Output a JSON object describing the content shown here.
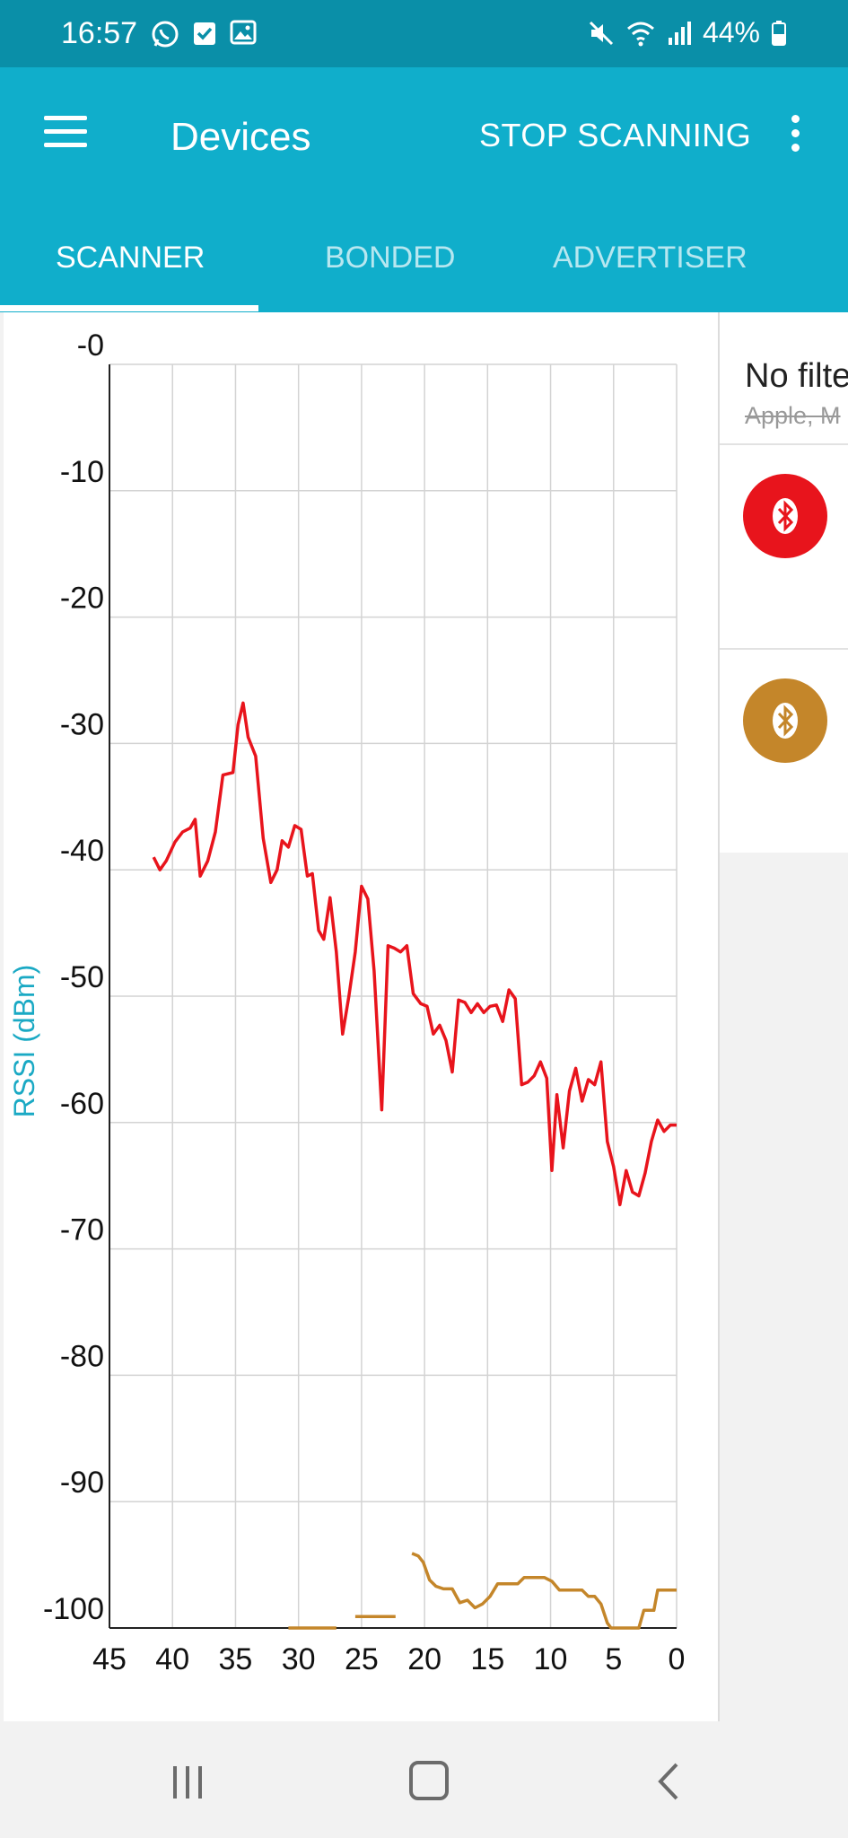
{
  "status_bar": {
    "time": "16:57",
    "battery": "44%"
  },
  "app_bar": {
    "title": "Devices",
    "stop_scanning": "STOP SCANNING"
  },
  "tabs": [
    {
      "label": "SCANNER",
      "active": true
    },
    {
      "label": "BONDED",
      "active": false
    },
    {
      "label": "ADVERTISER",
      "active": false
    }
  ],
  "filter": {
    "title": "No filte",
    "subtitle": "Apple, M"
  },
  "devices": [
    {
      "icon": "bluetooth-icon",
      "color": "#e8141c"
    },
    {
      "icon": "bluetooth-icon",
      "color": "#c4862a"
    }
  ],
  "colors": {
    "accent": "#10aecb",
    "status_bar": "#0a8fa8",
    "series_1": "#e8141c",
    "series_2": "#c4862a"
  },
  "chart_data": {
    "type": "line",
    "ylabel": "RSSI (dBm)",
    "xlabel": "",
    "xlim": [
      45,
      0
    ],
    "ylim": [
      -100,
      0
    ],
    "x_ticks": [
      "45",
      "40",
      "35",
      "30",
      "25",
      "20",
      "15",
      "10",
      "5",
      "0"
    ],
    "y_ticks": [
      "-0",
      "-10",
      "-20",
      "-30",
      "-40",
      "-50",
      "-60",
      "-70",
      "-80",
      "-90",
      "-100"
    ],
    "grid": true,
    "series": [
      {
        "color": "#e8141c",
        "points": [
          [
            41.5,
            -39
          ],
          [
            41,
            -40
          ],
          [
            40.5,
            -39.3
          ],
          [
            39.8,
            -37.8
          ],
          [
            39.2,
            -37
          ],
          [
            38.6,
            -36.7
          ],
          [
            38.2,
            -36
          ],
          [
            37.8,
            -40.5
          ],
          [
            37.2,
            -39.3
          ],
          [
            36.6,
            -37
          ],
          [
            36,
            -32.5
          ],
          [
            35.2,
            -32.3
          ],
          [
            34.8,
            -28.5
          ],
          [
            34.4,
            -26.8
          ],
          [
            34,
            -29.5
          ],
          [
            33.4,
            -31
          ],
          [
            32.8,
            -37.5
          ],
          [
            32.2,
            -41
          ],
          [
            31.7,
            -40
          ],
          [
            31.3,
            -37.7
          ],
          [
            30.8,
            -38.2
          ],
          [
            30.3,
            -36.5
          ],
          [
            29.8,
            -36.8
          ],
          [
            29.3,
            -40.5
          ],
          [
            28.9,
            -40.3
          ],
          [
            28.4,
            -44.8
          ],
          [
            28,
            -45.5
          ],
          [
            27.5,
            -42.2
          ],
          [
            27,
            -46.5
          ],
          [
            26.5,
            -53
          ],
          [
            26,
            -50
          ],
          [
            25.5,
            -46.5
          ],
          [
            25,
            -41.3
          ],
          [
            24.5,
            -42.3
          ],
          [
            24,
            -48
          ],
          [
            23.4,
            -59
          ],
          [
            22.9,
            -46
          ],
          [
            22.4,
            -46.2
          ],
          [
            21.9,
            -46.5
          ],
          [
            21.4,
            -46
          ],
          [
            20.9,
            -49.8
          ],
          [
            20.3,
            -50.6
          ],
          [
            19.8,
            -50.8
          ],
          [
            19.3,
            -53
          ],
          [
            18.8,
            -52.3
          ],
          [
            18.3,
            -53.5
          ],
          [
            17.8,
            -56
          ],
          [
            17.3,
            -50.3
          ],
          [
            16.8,
            -50.5
          ],
          [
            16.3,
            -51.3
          ],
          [
            15.8,
            -50.6
          ],
          [
            15.3,
            -51.3
          ],
          [
            14.8,
            -50.8
          ],
          [
            14.3,
            -50.7
          ],
          [
            13.8,
            -52
          ],
          [
            13.3,
            -49.5
          ],
          [
            12.8,
            -50.2
          ],
          [
            12.3,
            -57
          ],
          [
            11.8,
            -56.8
          ],
          [
            11.3,
            -56.3
          ],
          [
            10.8,
            -55.2
          ],
          [
            10.3,
            -56.5
          ],
          [
            9.9,
            -63.8
          ],
          [
            9.5,
            -57.8
          ],
          [
            9,
            -62
          ],
          [
            8.5,
            -57.5
          ],
          [
            8,
            -55.7
          ],
          [
            7.5,
            -58.3
          ],
          [
            7,
            -56.6
          ],
          [
            6.5,
            -57
          ],
          [
            6,
            -55.2
          ],
          [
            5.5,
            -61.5
          ],
          [
            5,
            -63.5
          ],
          [
            4.5,
            -66.5
          ],
          [
            4,
            -63.8
          ],
          [
            3.5,
            -65.5
          ],
          [
            3,
            -65.8
          ],
          [
            2.5,
            -64
          ],
          [
            2,
            -61.5
          ],
          [
            1.5,
            -59.8
          ],
          [
            1,
            -60.7
          ],
          [
            0.5,
            -60.2
          ],
          [
            0,
            -60.2
          ]
        ]
      },
      {
        "color": "#c4862a",
        "segments": [
          [
            [
              30.8,
              -100
            ],
            [
              27,
              -100
            ]
          ],
          [
            [
              25.5,
              -99.1
            ],
            [
              22.3,
              -99.1
            ]
          ],
          [
            [
              21,
              -94.1
            ],
            [
              20.5,
              -94.3
            ],
            [
              20.1,
              -94.8
            ],
            [
              19.6,
              -96.2
            ],
            [
              19.1,
              -96.7
            ],
            [
              18.5,
              -96.9
            ],
            [
              17.8,
              -96.9
            ],
            [
              17.2,
              -98
            ],
            [
              16.6,
              -97.8
            ],
            [
              16,
              -98.4
            ],
            [
              15.4,
              -98.1
            ],
            [
              14.8,
              -97.5
            ],
            [
              14.2,
              -96.5
            ],
            [
              13.4,
              -96.5
            ],
            [
              12.6,
              -96.5
            ],
            [
              12.1,
              -96
            ],
            [
              11.5,
              -96
            ],
            [
              10.5,
              -96
            ],
            [
              9.9,
              -96.3
            ],
            [
              9.3,
              -97
            ],
            [
              8.7,
              -97
            ],
            [
              8.1,
              -97
            ],
            [
              7.5,
              -97
            ],
            [
              7,
              -97.5
            ],
            [
              6.5,
              -97.5
            ],
            [
              6,
              -98.1
            ],
            [
              5.5,
              -99.6
            ],
            [
              5.2,
              -100
            ],
            [
              4.5,
              -100
            ],
            [
              3.6,
              -100
            ],
            [
              3,
              -100
            ],
            [
              2.6,
              -98.6
            ],
            [
              1.8,
              -98.6
            ],
            [
              1.5,
              -97
            ],
            [
              0.8,
              -97
            ],
            [
              0,
              -97
            ]
          ]
        ]
      }
    ]
  }
}
